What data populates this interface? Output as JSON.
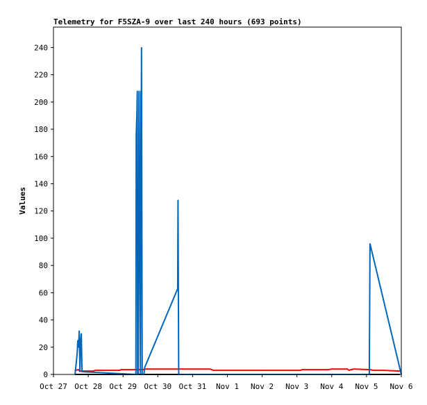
{
  "chart_data": {
    "type": "line",
    "title": "Telemetry for F5SZA-9 over last 240 hours (693 points)",
    "xlabel": "",
    "ylabel": "Values",
    "ylim": [
      0,
      255
    ],
    "xlim": [
      0,
      10
    ],
    "grid": false,
    "legend": "none",
    "y_ticks": [
      0,
      20,
      40,
      60,
      80,
      100,
      120,
      140,
      160,
      180,
      200,
      220,
      240
    ],
    "x_ticks": [
      {
        "x": 0,
        "label": "Oct 27"
      },
      {
        "x": 1,
        "label": "Oct 28"
      },
      {
        "x": 2,
        "label": "Oct 29"
      },
      {
        "x": 3,
        "label": "Oct 30"
      },
      {
        "x": 4,
        "label": "Oct 31"
      },
      {
        "x": 5,
        "label": "Nov 1"
      },
      {
        "x": 6,
        "label": "Nov 2"
      },
      {
        "x": 7,
        "label": "Nov 3"
      },
      {
        "x": 8,
        "label": "Nov 4"
      },
      {
        "x": 9,
        "label": "Nov 5"
      },
      {
        "x": 10,
        "label": "Nov 6"
      }
    ],
    "series": [
      {
        "color": "#ff0000",
        "x": [
          0.62,
          0.72,
          0.75,
          1.15,
          1.2,
          1.9,
          1.95,
          2.6,
          2.65,
          3.3,
          3.6,
          4.2,
          4.5,
          4.6,
          6.0,
          7.1,
          7.15,
          7.9,
          8.0,
          8.45,
          8.5,
          8.55,
          8.65,
          9.1,
          9.2,
          9.5,
          9.95
        ],
        "y": [
          3,
          3.5,
          2.5,
          2.5,
          3,
          3,
          3.5,
          3.5,
          4,
          4,
          4,
          4,
          4,
          3,
          3,
          3,
          3.5,
          3.5,
          4,
          4,
          3,
          3.5,
          4,
          3.5,
          3,
          3,
          2.5
        ]
      },
      {
        "color": "#000000",
        "x": [
          0.62,
          9.95
        ],
        "y": [
          0,
          0
        ]
      },
      {
        "color": "#0066bb",
        "x": [
          0.62,
          0.68,
          0.7,
          0.72,
          0.74,
          0.76,
          0.78,
          0.8,
          0.82,
          2.37,
          2.38,
          2.4,
          2.41,
          2.42,
          2.44,
          2.46,
          2.5,
          2.51,
          2.52,
          2.53,
          2.55,
          2.56,
          2.57,
          2.59,
          2.6,
          2.62,
          3.57,
          3.58,
          3.6,
          9.08,
          9.1,
          10.0
        ],
        "y": [
          0,
          15,
          25,
          20,
          32,
          2,
          25,
          30,
          2,
          0,
          176,
          192,
          208,
          0,
          0,
          208,
          0,
          208,
          160,
          240,
          0,
          0,
          0,
          0,
          0,
          5,
          63,
          128,
          0,
          0,
          96,
          0
        ]
      }
    ]
  }
}
